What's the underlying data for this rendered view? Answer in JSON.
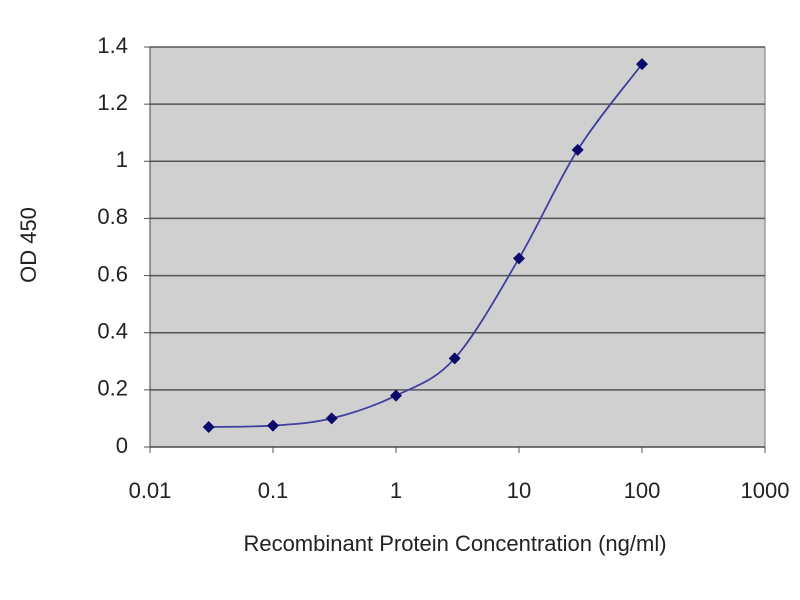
{
  "chart_data": {
    "type": "line",
    "x_label": "Recombinant Protein Concentration (ng/ml)",
    "y_label": "OD 450",
    "x": [
      0.03,
      0.1,
      0.3,
      1,
      3,
      10,
      30,
      100
    ],
    "series": [
      {
        "color": "#3f3f9f",
        "marker_color": "#0a0a6a",
        "values": [
          0.07,
          0.075,
          0.1,
          0.18,
          0.31,
          0.66,
          1.04,
          1.34
        ]
      }
    ],
    "xlim": [
      0.01,
      1000
    ],
    "xticks": [
      0.01,
      0.1,
      1,
      10,
      100,
      1000
    ],
    "x_log": true,
    "ylim": [
      0,
      1.4
    ],
    "yticks": [
      0,
      0.2,
      0.4,
      0.6,
      0.8,
      1,
      1.2,
      1.4
    ],
    "grid": true
  }
}
